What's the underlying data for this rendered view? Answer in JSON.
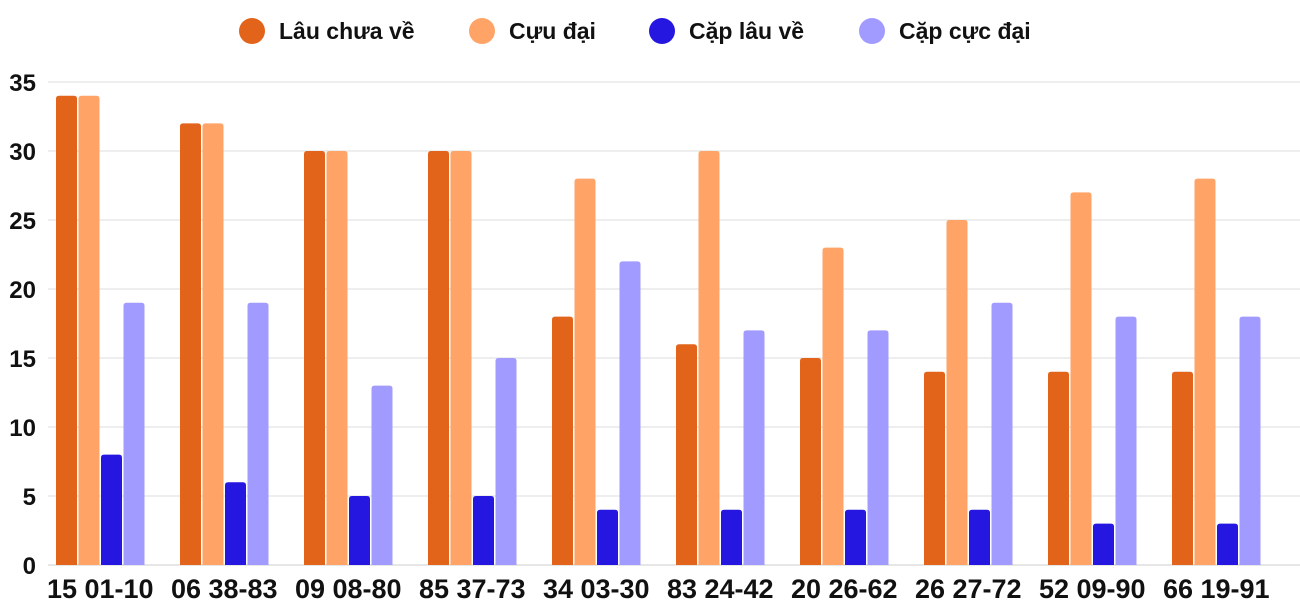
{
  "chart_data": {
    "type": "bar",
    "title": "",
    "xlabel": "",
    "ylabel": "",
    "ylim": [
      0,
      35
    ],
    "yticks": [
      0,
      5,
      10,
      15,
      20,
      25,
      30,
      35
    ],
    "grid": true,
    "legend_position": "top",
    "categories": [
      "15 01-10",
      "06 38-83",
      "09 08-80",
      "85 37-73",
      "34 03-30",
      "83 24-42",
      "20 26-62",
      "26 27-72",
      "52 09-90",
      "66 19-91"
    ],
    "series": [
      {
        "name": "Lâu chưa về",
        "color": "#e2631a",
        "values": [
          34,
          32,
          30,
          30,
          18,
          16,
          15,
          14,
          14,
          14
        ]
      },
      {
        "name": "Cựu đại",
        "color": "#ffa366",
        "values": [
          34,
          32,
          30,
          30,
          28,
          30,
          23,
          25,
          27,
          28
        ]
      },
      {
        "name": "Cặp lâu về",
        "color": "#2617e0",
        "values": [
          8,
          6,
          5,
          5,
          4,
          4,
          4,
          4,
          3,
          3
        ]
      },
      {
        "name": "Cặp cực đại",
        "color": "#a29bff",
        "values": [
          19,
          19,
          13,
          15,
          22,
          17,
          17,
          19,
          18,
          18
        ]
      }
    ]
  }
}
